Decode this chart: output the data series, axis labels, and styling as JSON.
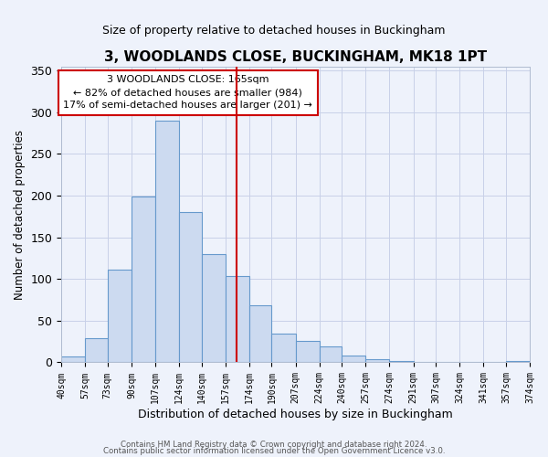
{
  "title": "3, WOODLANDS CLOSE, BUCKINGHAM, MK18 1PT",
  "subtitle": "Size of property relative to detached houses in Buckingham",
  "xlabel": "Distribution of detached houses by size in Buckingham",
  "ylabel": "Number of detached properties",
  "bar_edges": [
    40,
    57,
    73,
    90,
    107,
    124,
    140,
    157,
    174,
    190,
    207,
    224,
    240,
    257,
    274,
    291,
    307,
    324,
    341,
    357,
    374
  ],
  "bar_heights": [
    7,
    29,
    111,
    199,
    290,
    180,
    130,
    103,
    68,
    35,
    26,
    19,
    8,
    4,
    2,
    1,
    0,
    1,
    0,
    2
  ],
  "bar_color": "#ccdaf0",
  "bar_edge_color": "#6699cc",
  "tick_labels": [
    "40sqm",
    "57sqm",
    "73sqm",
    "90sqm",
    "107sqm",
    "124sqm",
    "140sqm",
    "157sqm",
    "174sqm",
    "190sqm",
    "207sqm",
    "224sqm",
    "240sqm",
    "257sqm",
    "274sqm",
    "291sqm",
    "307sqm",
    "324sqm",
    "341sqm",
    "357sqm",
    "374sqm"
  ],
  "vline_x": 165,
  "vline_color": "#cc0000",
  "annotation_line1": "3 WOODLANDS CLOSE: 165sqm",
  "annotation_line2": "← 82% of detached houses are smaller (984)",
  "annotation_line3": "17% of semi-detached houses are larger (201) →",
  "annotation_box_color": "#cc0000",
  "ylim": [
    0,
    355
  ],
  "yticks": [
    0,
    50,
    100,
    150,
    200,
    250,
    300,
    350
  ],
  "footer1": "Contains HM Land Registry data © Crown copyright and database right 2024.",
  "footer2": "Contains public sector information licensed under the Open Government Licence v3.0.",
  "background_color": "#eef2fb",
  "plot_background": "#eef2fb",
  "grid_color": "#c8d0e8"
}
